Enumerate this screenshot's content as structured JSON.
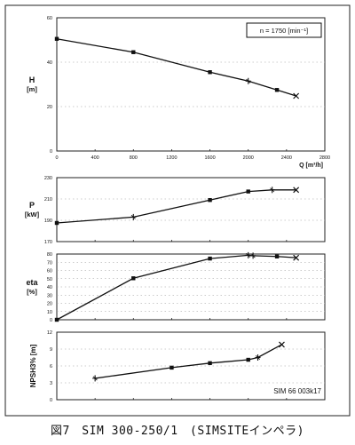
{
  "caption": "図7　SIM 300-250/1　(SIMSITEインペラ)",
  "chart_data": [
    {
      "type": "line",
      "ylabel": "H\n[m]",
      "xlabel": "Q [m³/h]",
      "ylim": [
        0,
        60
      ],
      "xlim": [
        0,
        2800
      ],
      "yticks": [
        "0",
        "20",
        "40",
        "60"
      ],
      "xticks": [
        "0",
        "400",
        "800",
        "1200",
        "1600",
        "2000",
        "2400",
        "2800"
      ],
      "annotation": "n = 1750 [min⁻¹]",
      "x": [
        0,
        800,
        1600,
        2000,
        2300,
        2500
      ],
      "values": [
        50.5,
        44.5,
        35.5,
        31.5,
        27.5,
        24.8
      ],
      "markers": [
        "square",
        "square",
        "square",
        "star",
        "square",
        "x"
      ]
    },
    {
      "type": "line",
      "ylabel": "P\n[kW]",
      "ylim": [
        170,
        230
      ],
      "xlim": [
        0,
        2800
      ],
      "yticks": [
        "170",
        "190",
        "210",
        "230"
      ],
      "x": [
        0,
        800,
        1600,
        2000,
        2250,
        2500
      ],
      "values": [
        187.5,
        193,
        209,
        217,
        218.5,
        218.5
      ],
      "markers": [
        "square",
        "star",
        "square",
        "square",
        "star",
        "x"
      ]
    },
    {
      "type": "line",
      "ylabel": "eta\n[%]",
      "ylim": [
        0,
        80
      ],
      "xlim": [
        0,
        2800
      ],
      "yticks": [
        "0",
        "10",
        "20",
        "30",
        "40",
        "50",
        "60",
        "70",
        "80"
      ],
      "x": [
        0,
        800,
        1600,
        2000,
        2050,
        2300,
        2500
      ],
      "values": [
        0,
        50.5,
        74.5,
        78.5,
        78,
        77,
        75.5
      ],
      "markers": [
        "square",
        "square",
        "square",
        "star",
        "star",
        "square",
        "x"
      ]
    },
    {
      "type": "line",
      "ylabel": "NPSH3% [m]",
      "ylim": [
        0,
        12
      ],
      "xlim": [
        0,
        2800
      ],
      "yticks": [
        "0",
        "3",
        "6",
        "9",
        "12"
      ],
      "annotation": "SIM 66 003k17",
      "x": [
        400,
        1200,
        1600,
        2000,
        2100,
        2350
      ],
      "values": [
        3.8,
        5.7,
        6.5,
        7.1,
        7.5,
        9.8
      ],
      "markers": [
        "star",
        "square",
        "square",
        "square",
        "star",
        "x"
      ]
    }
  ]
}
